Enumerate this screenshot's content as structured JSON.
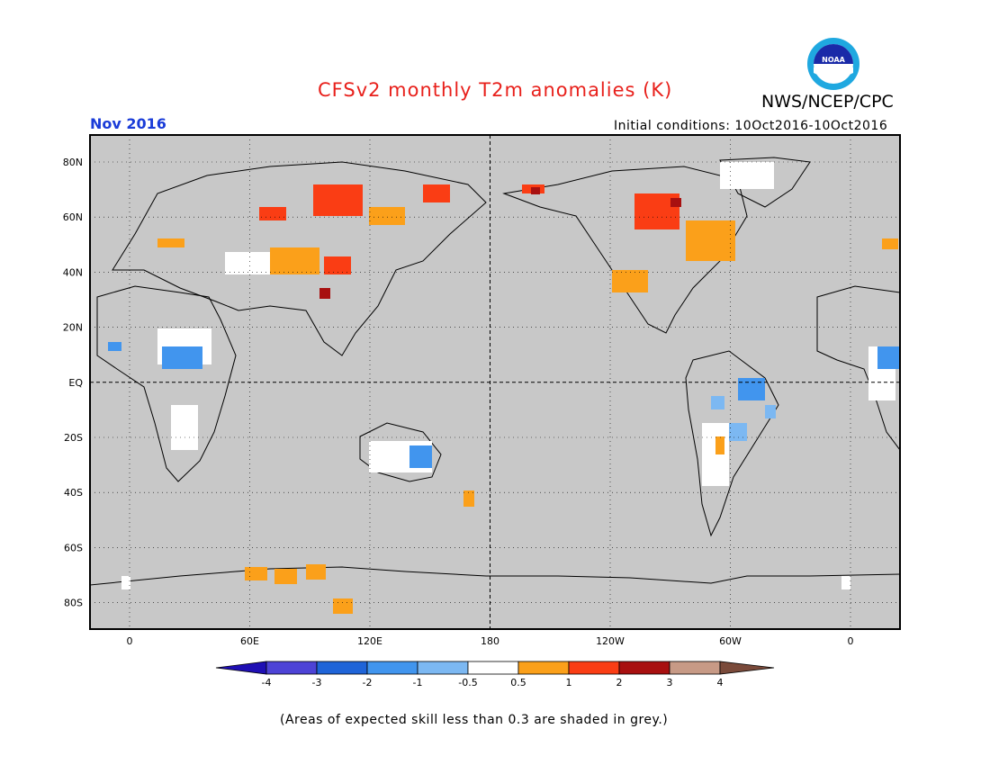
{
  "header": {
    "title": "CFSv2 monthly T2m anomalies (K)",
    "org": "NWS/NCEP/CPC",
    "valid_month": "Nov 2016",
    "initial_conditions": "Initial conditions: 10Oct2016-10Oct2016",
    "logo_text": "NOAA"
  },
  "map": {
    "lat_labels": [
      "80N",
      "60N",
      "40N",
      "20N",
      "EQ",
      "20S",
      "40S",
      "60S",
      "80S"
    ],
    "lon_labels": [
      "0",
      "60E",
      "120E",
      "180",
      "120W",
      "60W",
      "0"
    ],
    "colors": {
      "background": "#c8c8c8",
      "land_neutral": "#ffffff",
      "coast": "#000000"
    }
  },
  "colorbar": {
    "labels": [
      "-4",
      "-3",
      "-2",
      "-1",
      "-0.5",
      "0.5",
      "1",
      "2",
      "3",
      "4"
    ],
    "colors": [
      "#1f0fb4",
      "#4d43d6",
      "#1f64d8",
      "#4195ee",
      "#7cb8f2",
      "#ffffff",
      "#fba01a",
      "#fa3d14",
      "#a81010",
      "#c79a86",
      "#7a4a3a"
    ]
  },
  "footer": {
    "note": "(Areas of expected skill less than 0.3 are shaded in grey.)"
  }
}
